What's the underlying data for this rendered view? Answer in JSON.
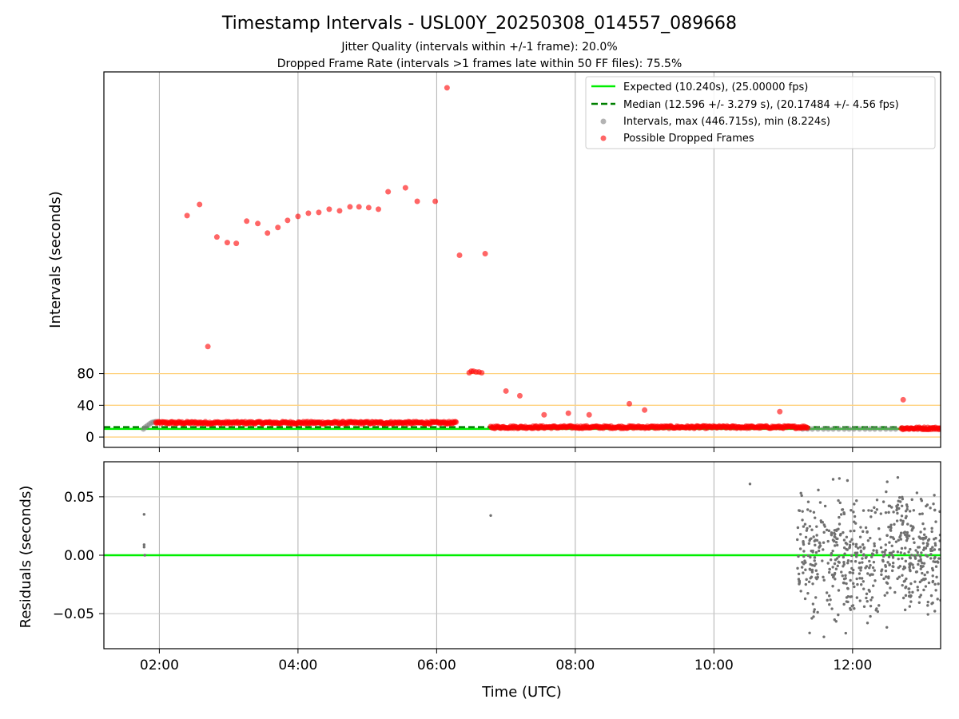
{
  "chart_data": [
    {
      "type": "scatter",
      "title": "Timestamp Intervals - USL00Y_20250308_014557_089668",
      "subtitle_lines": [
        "Jitter Quality (intervals within +/-1 frame): 20.0%",
        "Dropped Frame Rate (intervals >1 frames late within 50 FF files): 75.5%"
      ],
      "xlabel": "",
      "ylabel": "Intervals (seconds)",
      "x_unit": "hours UTC",
      "xlim": [
        1.2,
        13.27
      ],
      "ylim": [
        -13,
        460
      ],
      "yticks": [
        0,
        40,
        80
      ],
      "ytick_labels": [
        "0",
        "40",
        "80"
      ],
      "xticks": [
        2,
        4,
        6,
        8,
        10,
        12
      ],
      "xtick_labels": [
        "02:00",
        "04:00",
        "06:00",
        "08:00",
        "10:00",
        "12:00"
      ],
      "grid": "vertical",
      "reference_lines": [
        0,
        40,
        80
      ],
      "reference_color": "#ffd27f",
      "legend_position": "top-right",
      "legend": [
        "Expected (10.240s), (25.00000 fps)",
        "Median (12.596 +/- 3.279 s), (20.17484 +/- 4.56 fps)",
        "Intervals, max (446.715s), min (8.224s)",
        "Possible Dropped Frames"
      ],
      "expected_line": {
        "name": "Expected (10.240s), (25.00000 fps)",
        "y": 10.24,
        "color": "#00ee00"
      },
      "median_line": {
        "name": "Median (12.596 +/- 3.279 s), (20.17484 +/- 4.56 fps)",
        "y": 12.596,
        "color": "#008000"
      },
      "series": [
        {
          "name": "Intervals, max (446.715s), min (8.224s)",
          "color": "#808080",
          "x": [
            1.77,
            1.8,
            1.83,
            1.86,
            1.89,
            1.92,
            1.95,
            11.28,
            11.35,
            11.42,
            11.5,
            11.58,
            11.65,
            11.72,
            11.8,
            11.88,
            11.95,
            12.02,
            12.1,
            12.18,
            12.25,
            12.32,
            12.4,
            12.48,
            12.55,
            12.62,
            12.88,
            12.95,
            13.02,
            13.1,
            13.18,
            13.25
          ],
          "y": [
            10.2,
            12.5,
            14.5,
            16.5,
            18.2,
            19.0,
            19.5,
            10.2,
            10.25,
            10.2,
            10.25,
            10.2,
            10.3,
            10.2,
            10.25,
            10.2,
            10.25,
            10.2,
            10.3,
            10.2,
            10.25,
            10.2,
            10.25,
            10.2,
            10.3,
            10.2,
            10.25,
            10.2,
            10.3,
            10.2,
            10.25,
            10.2
          ]
        },
        {
          "name": "Possible Dropped Frames",
          "color": "#ff0000",
          "x": [
            2.4,
            2.58,
            2.7,
            2.83,
            2.98,
            3.11,
            3.26,
            3.42,
            3.56,
            3.71,
            3.85,
            4.0,
            4.15,
            4.3,
            4.45,
            4.6,
            4.75,
            4.88,
            5.02,
            5.16,
            5.3,
            5.55,
            5.72,
            5.98,
            6.15,
            6.33,
            6.7,
            6.47,
            6.5,
            6.53,
            6.57,
            6.61,
            6.65,
            7.0,
            7.2,
            8.78,
            9.0,
            12.73,
            7.55,
            7.9,
            8.2,
            10.95
          ],
          "y": [
            279,
            293,
            114,
            252,
            245,
            244,
            272,
            269,
            257,
            264,
            273,
            278,
            282,
            283,
            287,
            285,
            290,
            290,
            289,
            287,
            309,
            314,
            297,
            297,
            440,
            229,
            231,
            81,
            83,
            83,
            82,
            82,
            81,
            58,
            52,
            42,
            34,
            47,
            28,
            30,
            28,
            32
          ],
          "band": {
            "segments": [
              {
                "x_start": 1.95,
                "x_end": 6.28,
                "y": 18.0
              },
              {
                "x_start": 6.78,
                "x_end": 11.35,
                "y": 12.5
              },
              {
                "x_start": 12.7,
                "x_end": 13.27,
                "y": 11.0
              }
            ]
          }
        }
      ]
    },
    {
      "type": "scatter",
      "xlabel": "Time (UTC)",
      "ylabel": "Residuals (seconds)",
      "x_unit": "hours UTC",
      "xlim": [
        1.2,
        13.27
      ],
      "ylim": [
        -0.08,
        0.08
      ],
      "yticks": [
        -0.05,
        0.0,
        0.05
      ],
      "ytick_labels": [
        "−0.05",
        "0.00",
        "0.05"
      ],
      "xticks": [
        2,
        4,
        6,
        8,
        10,
        12
      ],
      "xtick_labels": [
        "02:00",
        "04:00",
        "06:00",
        "08:00",
        "10:00",
        "12:00"
      ],
      "grid": "both",
      "zero_line_color": "#00ee00",
      "series": [
        {
          "name": "",
          "color": "#707070",
          "x": [
            1.78,
            1.78,
            1.78,
            1.79,
            6.78,
            10.52
          ],
          "y": [
            0.035,
            0.009,
            0.007,
            0.0,
            0.034,
            0.061
          ],
          "cluster": {
            "x_start": 11.2,
            "x_end": 13.27,
            "y_min": -0.077,
            "y_max": 0.078,
            "count": 620
          }
        }
      ]
    }
  ]
}
